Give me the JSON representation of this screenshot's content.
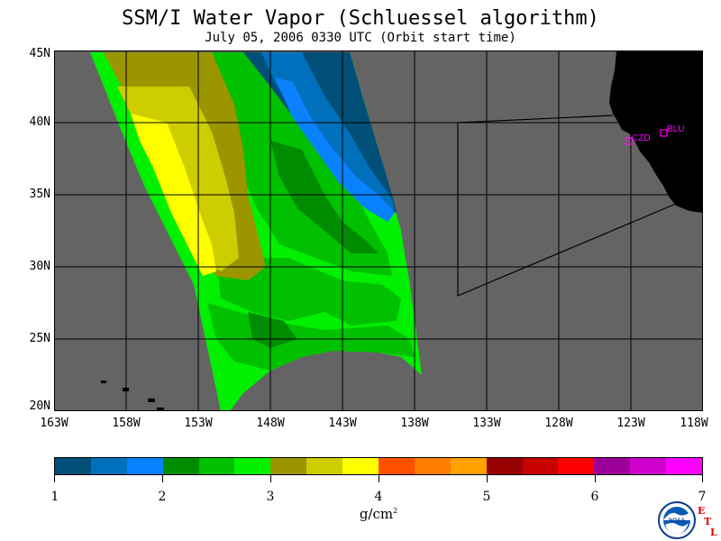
{
  "title": "SSM/I Water Vapor (Schluessel algorithm)",
  "subtitle": "July 05, 2006  0330 UTC  (Orbit start time)",
  "map": {
    "lat_labels": [
      "45N",
      "40N",
      "35N",
      "30N",
      "25N",
      "20N"
    ],
    "lon_labels": [
      "163W",
      "158W",
      "153W",
      "148W",
      "143W",
      "138W",
      "133W",
      "128W",
      "123W",
      "118W"
    ],
    "stations": [
      {
        "code": "CZD"
      },
      {
        "code": "BLU"
      }
    ],
    "colors": {
      "ocean": "#646464",
      "land": "#000000",
      "grid": "#000000",
      "station": "#ff00ff"
    }
  },
  "colorbar": {
    "colors": [
      "#004f78",
      "#0070bc",
      "#0a82ff",
      "#008c00",
      "#00c000",
      "#00f000",
      "#9b9600",
      "#cdcd00",
      "#ffff00",
      "#ff5000",
      "#ff7d00",
      "#ffa000",
      "#960000",
      "#c80000",
      "#ff0000",
      "#9b009b",
      "#cd00cd",
      "#ff00ff"
    ],
    "tick_labels": [
      "1",
      "2",
      "3",
      "4",
      "5",
      "6",
      "7"
    ],
    "units_base": "g/cm",
    "units_exp": "2"
  },
  "logo": {
    "noaa_text": "NOAA",
    "etl_letters": [
      "E",
      "T",
      "L"
    ]
  }
}
